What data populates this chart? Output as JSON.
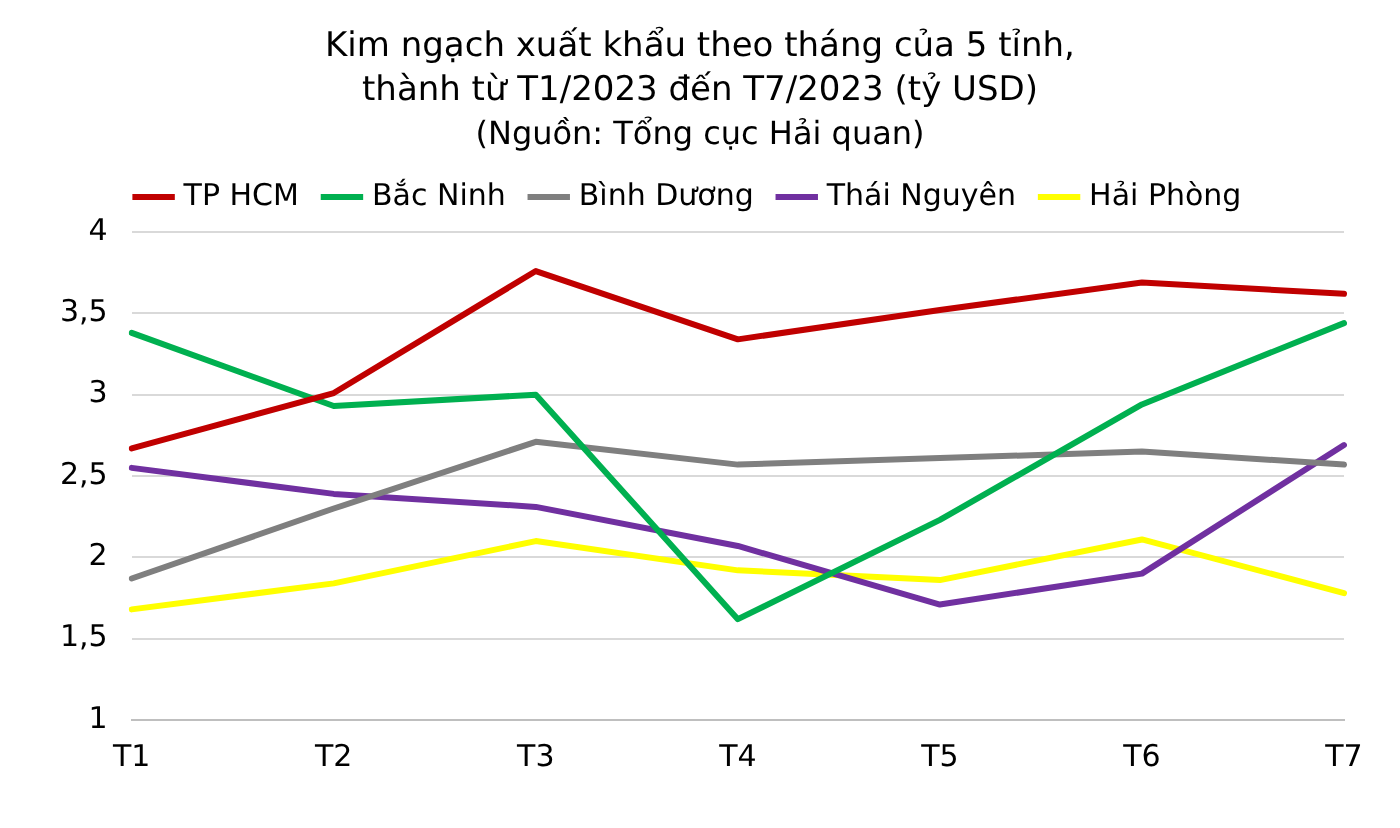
{
  "chart_data": {
    "type": "line",
    "title": "Kim ngạch xuất khẩu theo tháng của 5 tỉnh, thành từ T1/2023 đến T7/2023 (tỷ USD)",
    "subtitle": "(Nguồn: Tổng cục Hải quan)",
    "categories": [
      "T1",
      "T2",
      "T3",
      "T4",
      "T5",
      "T6",
      "T7"
    ],
    "series": [
      {
        "name": "TP HCM",
        "color": "#c00000",
        "values": [
          2.67,
          3.01,
          3.76,
          3.34,
          3.52,
          3.69,
          3.62
        ]
      },
      {
        "name": "Bắc Ninh",
        "color": "#00b050",
        "values": [
          3.38,
          2.93,
          3.0,
          1.62,
          2.23,
          2.94,
          3.44
        ]
      },
      {
        "name": "Bình Dương",
        "color": "#7f7f7f",
        "values": [
          1.87,
          2.3,
          2.71,
          2.57,
          2.61,
          2.65,
          2.57
        ]
      },
      {
        "name": "Thái Nguyên",
        "color": "#7030a0",
        "values": [
          2.55,
          2.39,
          2.31,
          2.07,
          1.71,
          1.9,
          2.69
        ]
      },
      {
        "name": "Hải Phòng",
        "color": "#ffff00",
        "values": [
          1.68,
          1.84,
          2.1,
          1.92,
          1.86,
          2.11,
          1.78
        ]
      }
    ],
    "ylim": [
      1,
      4
    ],
    "yticks": [
      1,
      {
        "value": 1.5,
        "label": "1,5"
      },
      2,
      {
        "value": 2.5,
        "label": "2,5"
      },
      3,
      {
        "value": 3.5,
        "label": "3,5"
      },
      4
    ],
    "grid": "y",
    "legend": "top",
    "marker": "none",
    "line_style": "solid"
  }
}
